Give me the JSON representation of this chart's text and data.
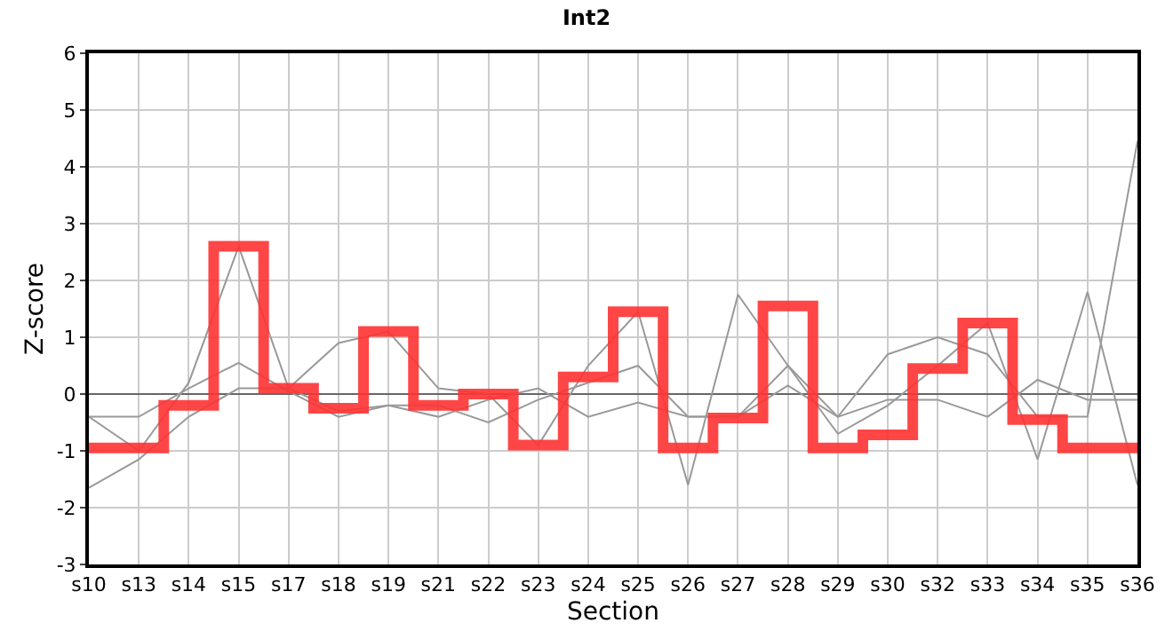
{
  "chart_data": {
    "type": "line",
    "title": "Int2",
    "xlabel": "Section",
    "ylabel": "Z-score",
    "categories": [
      "s10",
      "s13",
      "s14",
      "s15",
      "s17",
      "s18",
      "s19",
      "s21",
      "s22",
      "s23",
      "s24",
      "s25",
      "s26",
      "s27",
      "s28",
      "s29",
      "s30",
      "s32",
      "s33",
      "s34",
      "s35",
      "s36"
    ],
    "series": [
      {
        "color": "#999999",
        "values": [
          -0.4,
          -0.4,
          0.1,
          0.55,
          0.05,
          -0.4,
          -0.2,
          -0.4,
          -0.1,
          0.1,
          -0.4,
          -0.15,
          -0.4,
          -0.4,
          0.15,
          -0.4,
          -0.1,
          -0.1,
          -0.4,
          0.25,
          -0.1,
          -0.1
        ]
      },
      {
        "color": "#999999",
        "values": [
          -1.65,
          -1.15,
          -0.4,
          0.1,
          0.1,
          -0.3,
          -0.2,
          -0.2,
          -0.5,
          -0.1,
          0.2,
          0.5,
          -0.4,
          -0.4,
          0.5,
          -0.4,
          0.7,
          1.0,
          0.7,
          -0.4,
          -0.4,
          4.45
        ]
      },
      {
        "color": "#999999",
        "values": [
          -0.4,
          -1.0,
          0.2,
          2.6,
          0.1,
          0.9,
          1.1,
          0.1,
          0.0,
          -0.9,
          0.5,
          1.45,
          -1.6,
          1.75,
          0.5,
          -0.7,
          -0.2,
          0.5,
          1.25,
          -1.15,
          1.8,
          -1.6
        ]
      },
      {
        "type": "step",
        "color": "#ff3333",
        "values": [
          -0.95,
          -0.95,
          -0.2,
          2.6,
          0.1,
          -0.25,
          1.1,
          -0.2,
          0.0,
          -0.9,
          0.3,
          1.45,
          -0.95,
          -0.42,
          1.55,
          -0.95,
          -0.72,
          0.45,
          1.25,
          -0.45,
          -0.95,
          -0.95
        ]
      }
    ],
    "ylim": [
      -3,
      6
    ],
    "yticks": [
      -3,
      -2,
      -1,
      0,
      1,
      2,
      3,
      4,
      5,
      6
    ],
    "grid": true,
    "marker": "none",
    "line_style": "solid"
  }
}
